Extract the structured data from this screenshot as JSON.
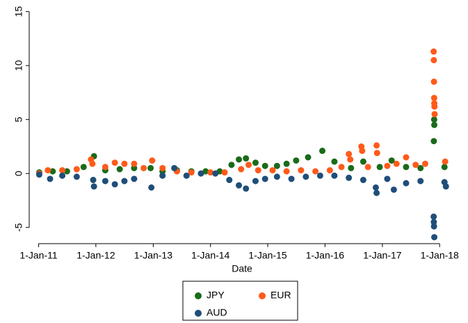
{
  "chart_data": {
    "type": "scatter",
    "x_label": "Date",
    "xlim": [
      "2010-11-02",
      "2018-04-12"
    ],
    "xticks": [
      {
        "value": "2011-01-01",
        "label": "1-Jan-11"
      },
      {
        "value": "2012-01-01",
        "label": "1-Jan-12"
      },
      {
        "value": "2013-01-01",
        "label": "1-Jan-13"
      },
      {
        "value": "2014-01-01",
        "label": "1-Jan-14"
      },
      {
        "value": "2015-01-01",
        "label": "1-Jan-15"
      },
      {
        "value": "2016-01-01",
        "label": "1-Jan-16"
      },
      {
        "value": "2017-01-01",
        "label": "1-Jan-17"
      },
      {
        "value": "2018-01-01",
        "label": "1-Jan-18"
      }
    ],
    "ylim": [
      -6.5,
      15.5
    ],
    "yticks": [
      -5,
      0,
      5,
      10,
      15
    ],
    "grid": false,
    "legend": "bottom",
    "series": [
      {
        "name": "JPY",
        "color": "#1a6b1a",
        "x": [
          "2011-01-05",
          "2011-04-01",
          "2011-07-01",
          "2011-10-15",
          "2011-12-20",
          "2012-03-01",
          "2012-06-01",
          "2012-09-01",
          "2012-12-15",
          "2013-03-01",
          "2013-06-01",
          "2013-09-01",
          "2013-12-01",
          "2014-03-01",
          "2014-05-15",
          "2014-07-01",
          "2014-08-15",
          "2014-10-15",
          "2014-12-15",
          "2015-03-01",
          "2015-05-01",
          "2015-07-01",
          "2015-09-15",
          "2015-12-15",
          "2016-03-01",
          "2016-06-15",
          "2016-09-01",
          "2016-12-15",
          "2017-03-01",
          "2017-06-01",
          "2017-09-01",
          "2017-11-25",
          "2017-11-28",
          "2017-11-27",
          "2018-02-01"
        ],
        "values": [
          0.1,
          0.2,
          0.2,
          0.6,
          1.6,
          0.3,
          0.4,
          0.5,
          0.5,
          0.2,
          0.3,
          0.2,
          0.2,
          0.2,
          0.8,
          1.3,
          1.4,
          1.0,
          0.7,
          0.7,
          0.9,
          1.2,
          1.5,
          2.1,
          1.1,
          0.5,
          1.1,
          0.6,
          1.2,
          0.6,
          0.5,
          3.0,
          4.5,
          5.0,
          0.6
        ]
      },
      {
        "name": "EUR",
        "color": "#ff5a1a",
        "x": [
          "2011-01-05",
          "2011-03-01",
          "2011-06-01",
          "2011-09-01",
          "2011-12-01",
          "2011-12-10",
          "2012-03-01",
          "2012-05-01",
          "2012-07-01",
          "2012-09-01",
          "2012-11-01",
          "2012-12-25",
          "2013-03-01",
          "2013-06-01",
          "2013-09-01",
          "2014-01-01",
          "2014-04-01",
          "2014-07-15",
          "2014-09-01",
          "2014-11-01",
          "2015-02-01",
          "2015-05-01",
          "2015-08-01",
          "2015-11-01",
          "2016-02-01",
          "2016-04-15",
          "2016-06-01",
          "2016-06-10",
          "2016-08-20",
          "2016-08-25",
          "2016-10-01",
          "2016-11-25",
          "2016-11-28",
          "2017-02-01",
          "2017-04-01",
          "2017-06-01",
          "2017-08-01",
          "2017-10-01",
          "2017-11-24",
          "2017-11-25",
          "2017-11-26",
          "2017-11-27",
          "2017-11-28",
          "2017-11-29",
          "2017-11-30",
          "2018-02-05"
        ],
        "values": [
          0.0,
          0.3,
          0.3,
          0.4,
          1.3,
          0.9,
          0.6,
          1.0,
          0.9,
          0.9,
          0.5,
          1.2,
          0.5,
          0.2,
          0.1,
          0.1,
          0.1,
          0.4,
          0.8,
          0.3,
          0.3,
          0.2,
          0.3,
          0.2,
          0.3,
          0.6,
          1.8,
          1.3,
          2.5,
          2.1,
          0.6,
          2.6,
          1.9,
          0.7,
          0.9,
          1.5,
          0.8,
          0.9,
          11.3,
          10.5,
          8.5,
          7.0,
          6.5,
          6.2,
          5.5,
          1.1
        ]
      },
      {
        "name": "AUD",
        "color": "#1f4e79",
        "x": [
          "2011-01-05",
          "2011-03-15",
          "2011-06-01",
          "2011-09-01",
          "2011-12-20",
          "2011-12-15",
          "2012-03-01",
          "2012-05-01",
          "2012-07-01",
          "2012-09-01",
          "2012-12-20",
          "2013-03-01",
          "2013-05-15",
          "2013-08-01",
          "2013-11-01",
          "2014-02-01",
          "2014-05-01",
          "2014-07-01",
          "2014-08-15",
          "2014-10-15",
          "2014-12-15",
          "2015-03-01",
          "2015-06-01",
          "2015-09-01",
          "2015-12-01",
          "2016-03-01",
          "2016-06-01",
          "2016-09-01",
          "2016-11-25",
          "2016-11-20",
          "2017-02-01",
          "2017-03-15",
          "2017-06-01",
          "2017-09-01",
          "2017-11-24",
          "2017-11-25",
          "2017-11-26",
          "2017-11-28",
          "2018-02-01",
          "2018-02-10"
        ],
        "values": [
          -0.1,
          -0.5,
          -0.2,
          -0.3,
          -1.2,
          -0.6,
          -0.7,
          -1.0,
          -0.7,
          -0.5,
          -1.3,
          -0.2,
          0.5,
          -0.2,
          0.0,
          0.0,
          -0.6,
          -1.1,
          -1.4,
          -0.7,
          -0.5,
          -0.3,
          -0.5,
          -0.3,
          -0.2,
          -0.2,
          -0.4,
          -0.6,
          -1.8,
          -1.3,
          -0.5,
          -1.5,
          -0.9,
          -0.7,
          -4.0,
          -4.5,
          -4.9,
          -5.9,
          -0.8,
          -1.2
        ]
      }
    ]
  }
}
